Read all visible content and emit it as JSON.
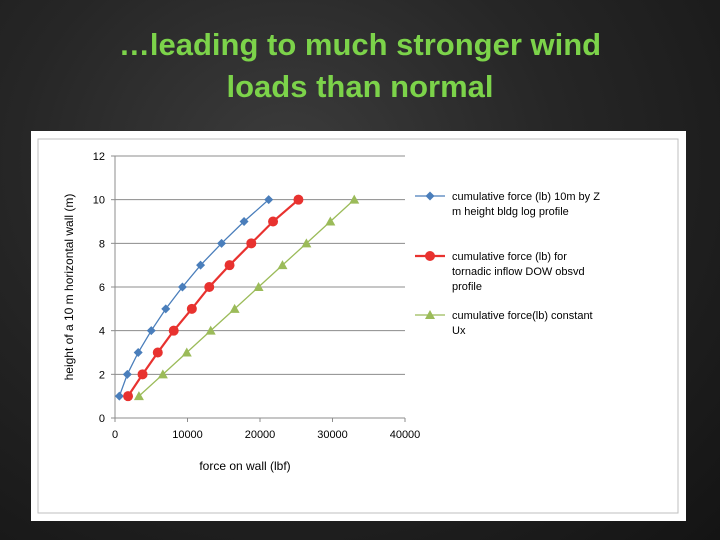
{
  "slide": {
    "title_line1": "…leading to much stronger wind",
    "title_line2": "loads than normal"
  },
  "chart_data": {
    "type": "scatter",
    "title": "",
    "xlabel": "force on wall (lbf)",
    "ylabel": "height of a 10 m horizontal wall (m)",
    "xlim": [
      0,
      40000
    ],
    "ylim": [
      0,
      12
    ],
    "xticks": [
      0,
      10000,
      20000,
      30000,
      40000
    ],
    "yticks": [
      0,
      2,
      4,
      6,
      8,
      10,
      12
    ],
    "grid": "horizontal",
    "legend": "right",
    "series": [
      {
        "name": "cumulative force (lb) 10m by Z m height bldg log profile",
        "legend_lines": [
          "cumulative force (lb) 10m by Z",
          "m height bldg log profile"
        ],
        "marker": "diamond",
        "color": "#4a7ebb",
        "x": [
          600,
          1700,
          3200,
          5000,
          7000,
          9300,
          11800,
          14700,
          17800,
          21200
        ],
        "y": [
          1,
          2,
          3,
          4,
          5,
          6,
          7,
          8,
          9,
          10
        ]
      },
      {
        "name": "cumulative force (lb) for tornadic inflow DOW obsvd profile",
        "legend_lines": [
          "cumulative force (lb) for",
          "tornadic inflow DOW obsvd",
          "profile"
        ],
        "marker": "circle",
        "color": "#e8322f",
        "x": [
          1800,
          3800,
          5900,
          8100,
          10600,
          13000,
          15800,
          18800,
          21800,
          25300
        ],
        "y": [
          1,
          2,
          3,
          4,
          5,
          6,
          7,
          8,
          9,
          10
        ]
      },
      {
        "name": "cumulative force(lb) constant Ux",
        "legend_lines": [
          "cumulative force(lb)  constant",
          "Ux"
        ],
        "marker": "triangle",
        "color": "#9bbb59",
        "x": [
          3300,
          6600,
          9900,
          13200,
          16500,
          19800,
          23100,
          26400,
          29700,
          33000
        ],
        "y": [
          1,
          2,
          3,
          4,
          5,
          6,
          7,
          8,
          9,
          10
        ]
      }
    ]
  }
}
